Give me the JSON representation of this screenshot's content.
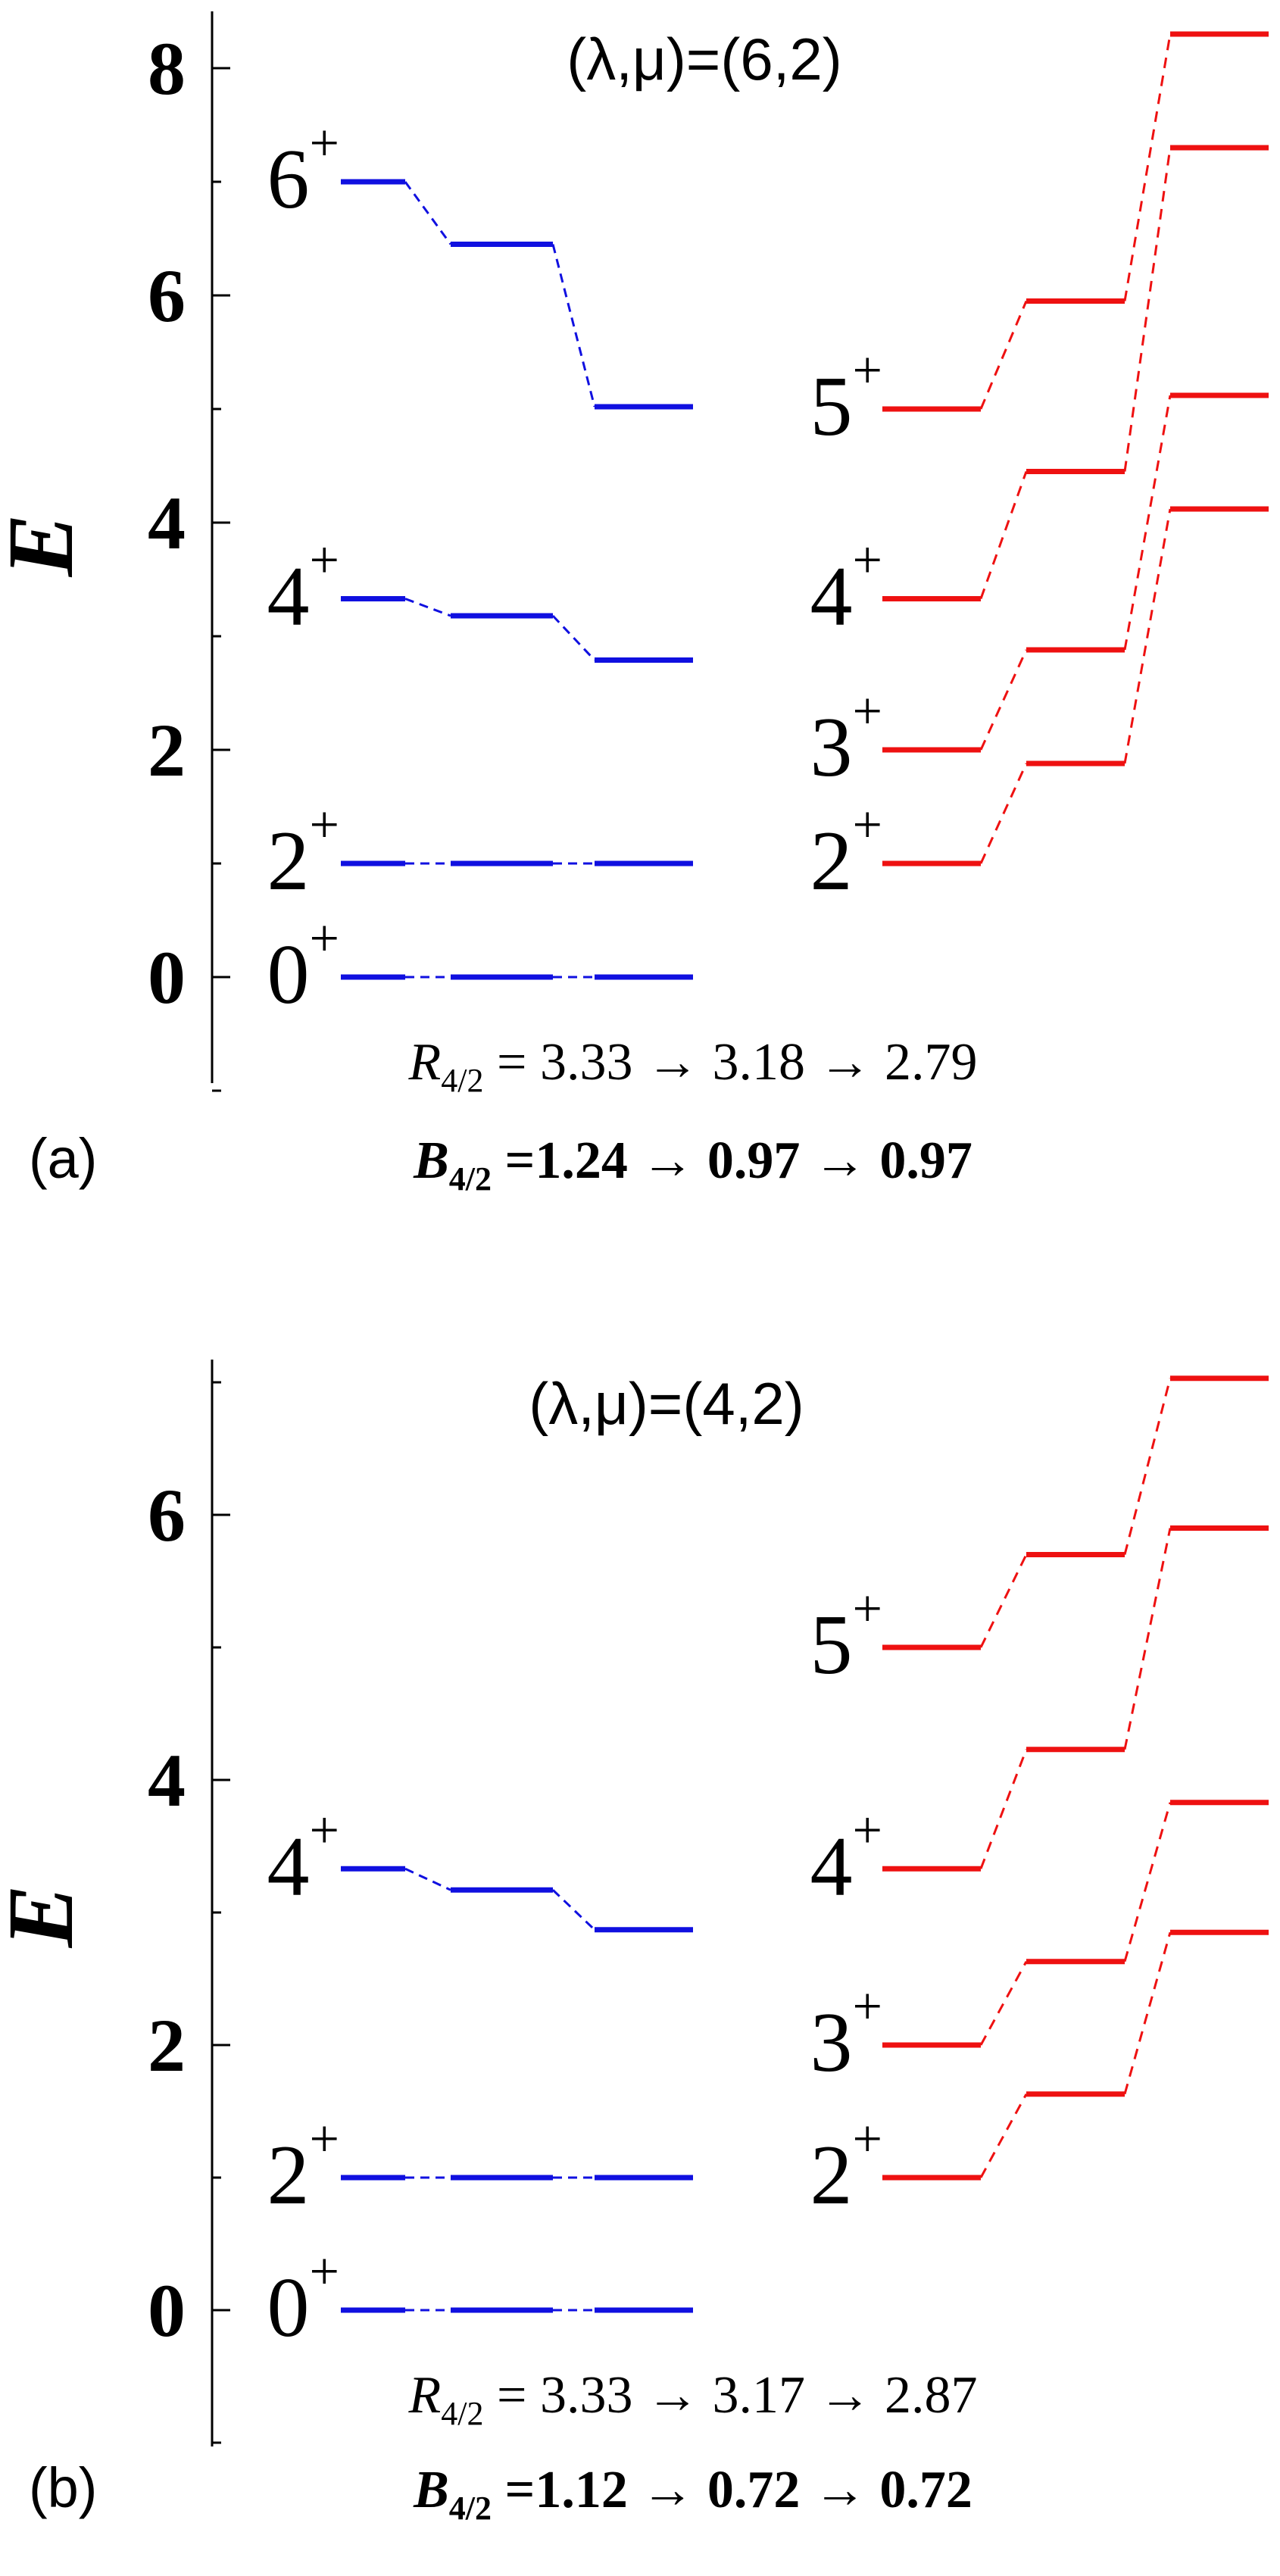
{
  "chart_data": [
    {
      "type": "level-scheme",
      "panel_label": "(a)",
      "title": "(λ,μ)=(6,2)",
      "ylabel": "E",
      "ylim": [
        -1,
        8.5
      ],
      "yticks": [
        0,
        2,
        4,
        6,
        8
      ],
      "ground_band": {
        "color": "#1010e0",
        "levels": [
          {
            "spin": "0",
            "parity": "+",
            "energies": [
              0,
              0,
              0
            ]
          },
          {
            "spin": "2",
            "parity": "+",
            "energies": [
              1,
              1,
              1
            ]
          },
          {
            "spin": "4",
            "parity": "+",
            "energies": [
              3.33,
              3.18,
              2.79
            ]
          },
          {
            "spin": "6",
            "parity": "+",
            "energies": [
              7.0,
              6.45,
              5.02
            ]
          }
        ]
      },
      "gamma_band": {
        "color": "#ee1111",
        "levels": [
          {
            "spin": "2",
            "parity": "+",
            "energies": [
              1.0,
              1.88,
              4.12
            ]
          },
          {
            "spin": "3",
            "parity": "+",
            "energies": [
              2.0,
              2.88,
              5.12
            ]
          },
          {
            "spin": "4",
            "parity": "+",
            "energies": [
              3.33,
              4.45,
              7.3
            ]
          },
          {
            "spin": "5",
            "parity": "+",
            "energies": [
              5.0,
              5.95,
              8.3
            ]
          }
        ]
      },
      "annotations": {
        "r_label": "R",
        "r_sub": "4/2",
        "r_values": " = 3.33 → 3.18 → 2.79",
        "b_label": "B",
        "b_sub": "4/2",
        "b_values": " =1.24 → 0.97 → 0.97"
      }
    },
    {
      "type": "level-scheme",
      "panel_label": "(b)",
      "title": "(λ,μ)=(4,2)",
      "ylabel": "E",
      "ylim": [
        -1,
        7.1
      ],
      "yticks": [
        0,
        2,
        4,
        6
      ],
      "ground_band": {
        "color": "#1010e0",
        "levels": [
          {
            "spin": "0",
            "parity": "+",
            "energies": [
              0,
              0,
              0
            ]
          },
          {
            "spin": "2",
            "parity": "+",
            "energies": [
              1,
              1,
              1
            ]
          },
          {
            "spin": "4",
            "parity": "+",
            "energies": [
              3.33,
              3.17,
              2.87
            ]
          }
        ]
      },
      "gamma_band": {
        "color": "#ee1111",
        "levels": [
          {
            "spin": "2",
            "parity": "+",
            "energies": [
              1.0,
              1.63,
              2.85
            ]
          },
          {
            "spin": "3",
            "parity": "+",
            "energies": [
              2.0,
              2.63,
              3.83
            ]
          },
          {
            "spin": "4",
            "parity": "+",
            "energies": [
              3.33,
              4.23,
              5.9
            ]
          },
          {
            "spin": "5",
            "parity": "+",
            "energies": [
              5.0,
              5.7,
              7.03
            ]
          }
        ]
      },
      "annotations": {
        "r_label": "R",
        "r_sub": "4/2",
        "r_values": " = 3.33 → 3.17 → 2.87",
        "b_label": "B",
        "b_sub": "4/2",
        "b_values": " =1.12 → 0.72 → 0.72"
      }
    }
  ]
}
